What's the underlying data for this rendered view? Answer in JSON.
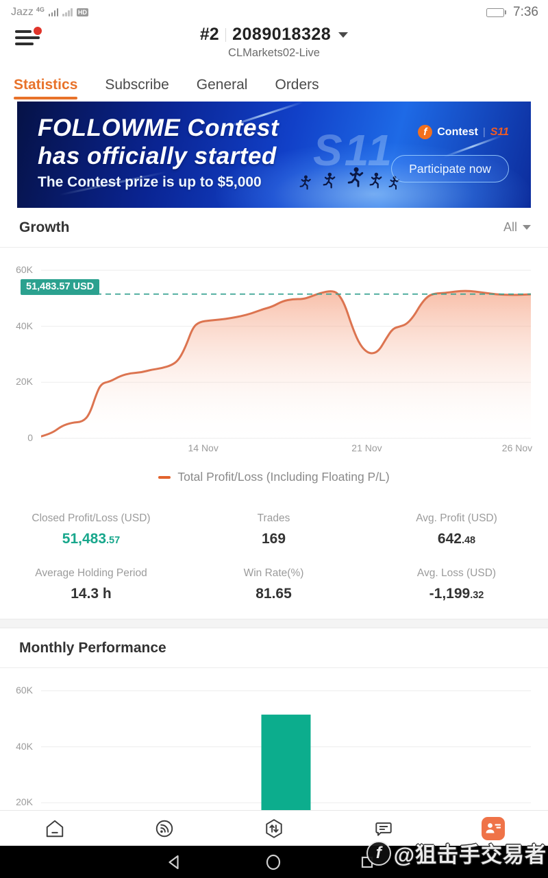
{
  "colors": {
    "orange": "#E8722A",
    "teal": "#18A78C",
    "badge": "#2BA18F",
    "line": "#DC7450",
    "bar": "#0CAD8D"
  },
  "status_bar": {
    "carrier": "Jazz",
    "network": "4G",
    "hd": "HD",
    "time": "7:36"
  },
  "header": {
    "account_rank": "#2",
    "account_id": "2089018328",
    "account_name": "CLMarkets02-Live"
  },
  "tabs": [
    {
      "label": "Statistics",
      "active": true
    },
    {
      "label": "Subscribe",
      "active": false
    },
    {
      "label": "General",
      "active": false
    },
    {
      "label": "Orders",
      "active": false
    }
  ],
  "banner": {
    "title_line1": "FOLLOWME Contest",
    "title_line2": "has officially started",
    "subtitle": "The Contest prize is up to $5,000",
    "logo_letter": "f",
    "logo_text": "Contest",
    "separator": "|",
    "season": "S11",
    "season_watermark": "S11",
    "cta": "Participate now"
  },
  "growth": {
    "title": "Growth",
    "filter": "All",
    "marker_label": "51,483.57 USD",
    "legend": "Total Profit/Loss (Including Floating P/L)"
  },
  "chart_data": [
    {
      "type": "area",
      "title": "Growth",
      "ylabel": "USD",
      "unit": "thousand USD",
      "ylim": [
        0,
        65
      ],
      "grid": true,
      "y_ticks": [
        {
          "value_k": 0,
          "label": "0"
        },
        {
          "value_k": 20,
          "label": "20K"
        },
        {
          "value_k": 40,
          "label": "40K"
        },
        {
          "value_k": 60,
          "label": "60K"
        }
      ],
      "x_ticks": [
        {
          "label": "14 Nov",
          "pos": 0.331
        },
        {
          "label": "21 Nov",
          "pos": 0.665
        },
        {
          "label": "26 Nov",
          "pos": 0.972
        }
      ],
      "reference_line": {
        "value_k": 51.48357,
        "label": "51,483.57 USD"
      },
      "legend_position": "bottom",
      "series": [
        {
          "name": "Total Profit/Loss (Including Floating P/L)",
          "points": [
            [
              0,
              0.7
            ],
            [
              0.021,
              1.7
            ],
            [
              0.042,
              4.4
            ],
            [
              0.063,
              5.6
            ],
            [
              0.085,
              5.9
            ],
            [
              0.099,
              8.6
            ],
            [
              0.113,
              15.9
            ],
            [
              0.123,
              19.6
            ],
            [
              0.141,
              20.3
            ],
            [
              0.162,
              22.3
            ],
            [
              0.183,
              23.3
            ],
            [
              0.204,
              23.5
            ],
            [
              0.225,
              24.5
            ],
            [
              0.246,
              25.0
            ],
            [
              0.268,
              26.2
            ],
            [
              0.282,
              28.2
            ],
            [
              0.296,
              33.1
            ],
            [
              0.31,
              39.7
            ],
            [
              0.324,
              41.6
            ],
            [
              0.345,
              42.1
            ],
            [
              0.366,
              42.4
            ],
            [
              0.387,
              42.9
            ],
            [
              0.408,
              43.6
            ],
            [
              0.43,
              44.6
            ],
            [
              0.451,
              46.0
            ],
            [
              0.472,
              47.0
            ],
            [
              0.493,
              49.0
            ],
            [
              0.514,
              49.7
            ],
            [
              0.535,
              49.7
            ],
            [
              0.549,
              50.5
            ],
            [
              0.57,
              51.9
            ],
            [
              0.592,
              52.7
            ],
            [
              0.606,
              51.9
            ],
            [
              0.62,
              47.8
            ],
            [
              0.634,
              40.4
            ],
            [
              0.648,
              34.3
            ],
            [
              0.662,
              31.1
            ],
            [
              0.676,
              30.1
            ],
            [
              0.69,
              31.3
            ],
            [
              0.704,
              35.5
            ],
            [
              0.718,
              39.2
            ],
            [
              0.732,
              39.9
            ],
            [
              0.746,
              40.7
            ],
            [
              0.761,
              43.6
            ],
            [
              0.775,
              47.8
            ],
            [
              0.789,
              50.7
            ],
            [
              0.803,
              51.7
            ],
            [
              0.824,
              51.9
            ],
            [
              0.845,
              52.4
            ],
            [
              0.866,
              52.7
            ],
            [
              0.887,
              52.4
            ],
            [
              0.908,
              51.9
            ],
            [
              0.93,
              51.4
            ],
            [
              0.951,
              51.2
            ],
            [
              0.972,
              51.2
            ],
            [
              1.0,
              51.4
            ]
          ]
        }
      ]
    },
    {
      "type": "bar",
      "title": "Monthly Performance",
      "unit": "thousand USD",
      "grid": true,
      "y_ticks": [
        {
          "value_k": 20,
          "label": "20K"
        },
        {
          "value_k": 40,
          "label": "40K"
        },
        {
          "value_k": 60,
          "label": "60K"
        }
      ],
      "values": [
        51.48
      ],
      "bar_pos_frac": [
        0.5
      ],
      "note": "single bar, chart clipped by bottom navigation"
    }
  ],
  "stats": [
    {
      "label": "Closed Profit/Loss (USD)",
      "value_main": "51,483",
      "value_sub": ".57",
      "highlight": "teal"
    },
    {
      "label": "Trades",
      "value_main": "169",
      "value_sub": "",
      "highlight": ""
    },
    {
      "label": "Avg. Profit (USD)",
      "value_main": "642",
      "value_sub": ".48",
      "highlight": ""
    },
    {
      "label": "Average Holding Period",
      "value_main": "14.3 h",
      "value_sub": "",
      "highlight": ""
    },
    {
      "label": "Win Rate(%)",
      "value_main": "81.65",
      "value_sub": "",
      "highlight": ""
    },
    {
      "label": "Avg. Loss (USD)",
      "value_main": "-1,199",
      "value_sub": ".32",
      "highlight": ""
    }
  ],
  "monthly": {
    "title": "Monthly Performance"
  },
  "bottom_nav": [
    {
      "name": "home",
      "active": false
    },
    {
      "name": "feed",
      "active": false
    },
    {
      "name": "trade",
      "active": false
    },
    {
      "name": "chat",
      "active": false
    },
    {
      "name": "profile",
      "active": true
    }
  ],
  "android_nav": [
    {
      "name": "back"
    },
    {
      "name": "home"
    },
    {
      "name": "recents"
    }
  ],
  "watermark": {
    "logo_letter": "f",
    "text": "@狙击手交易者"
  }
}
